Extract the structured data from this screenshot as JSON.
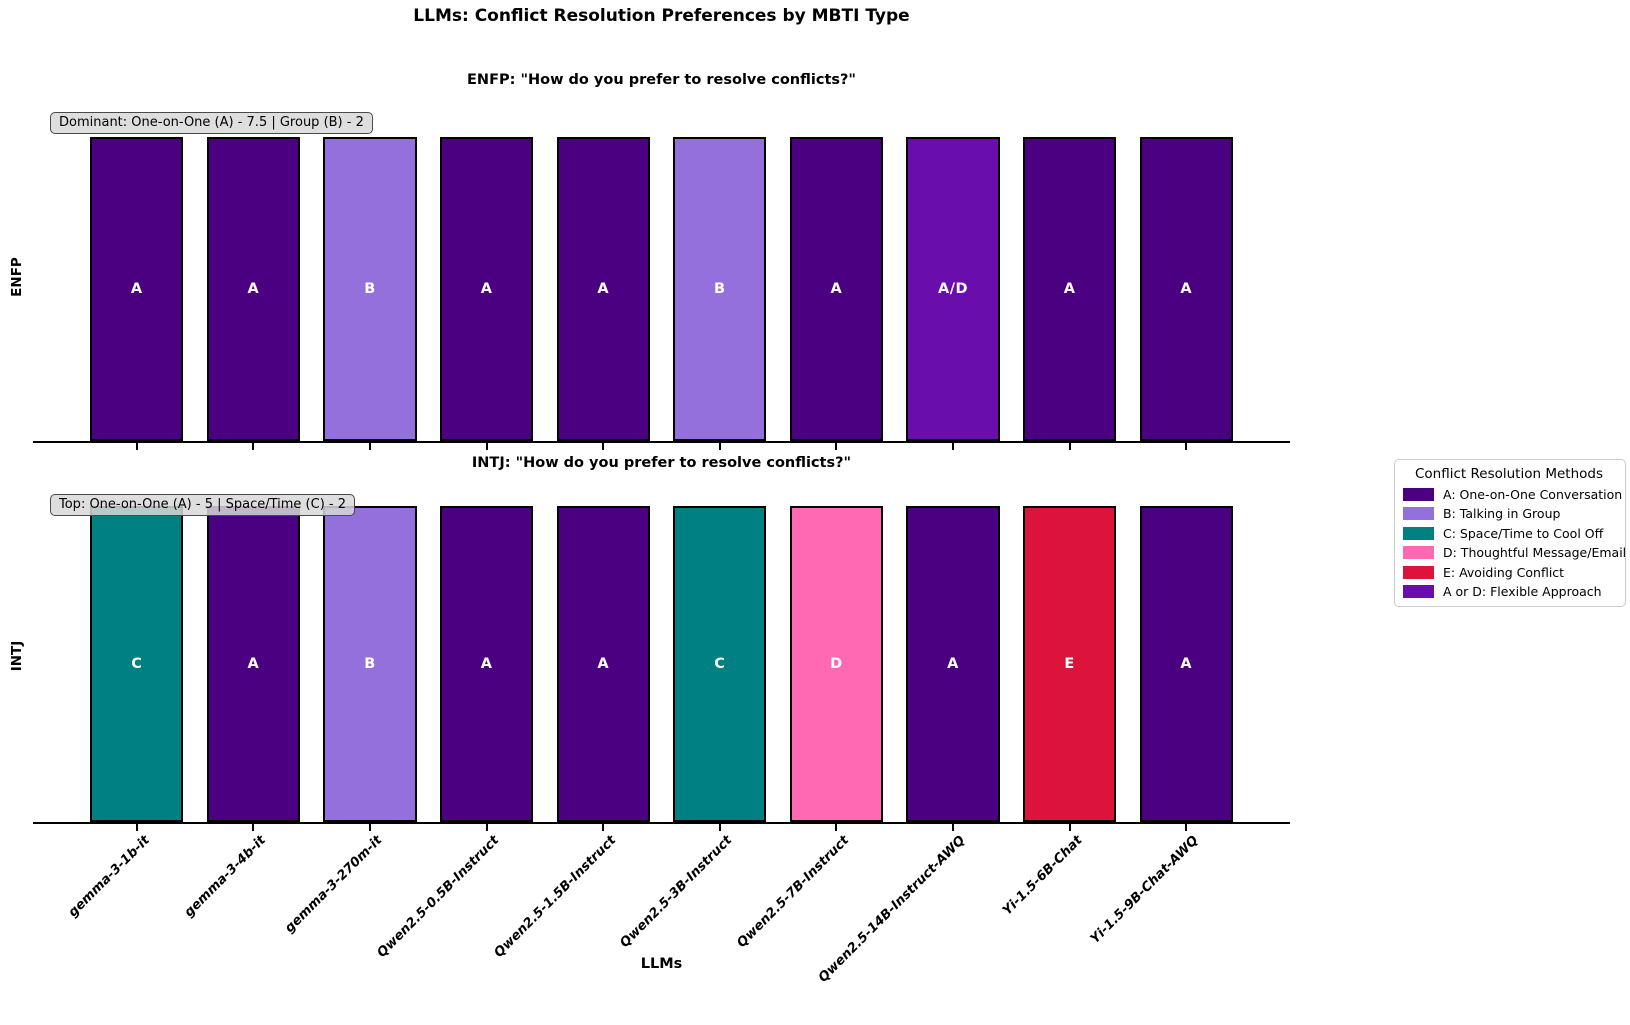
{
  "chart_data": {
    "type": "bar",
    "title": "LLMs: Conflict Resolution Preferences by MBTI Type",
    "xlabel": "LLMs",
    "categories": [
      "gemma-3-1b-it",
      "gemma-3-4b-it",
      "gemma-3-270m-it",
      "Qwen2.5-0.5B-Instruct",
      "Qwen2.5-1.5B-Instruct",
      "Qwen2.5-3B-Instruct",
      "Qwen2.5-7B-Instruct",
      "Qwen2.5-14B-Instruct-AWQ",
      "Yi-1.5-6B-Chat",
      "Yi-1.5-9B-Chat-AWQ"
    ],
    "ylim": [
      0,
      1.09
    ],
    "grid": false,
    "subplots": [
      {
        "id": "enfp",
        "title": "ENFP: \"How do you prefer to resolve conflicts?\"",
        "ylabel": "ENFP",
        "annotation": "Dominant: One-on-One (A) - 7.5 | Group (B) - 2",
        "series": [
          {
            "name": "preference",
            "values": [
              1,
              1,
              1,
              1,
              1,
              1,
              1,
              1,
              1,
              1
            ]
          }
        ],
        "bar_labels": [
          "A",
          "A",
          "B",
          "A",
          "A",
          "B",
          "A",
          "A/D",
          "A",
          "A"
        ]
      },
      {
        "id": "intj",
        "title": "INTJ: \"How do you prefer to resolve conflicts?\"",
        "ylabel": "INTJ",
        "annotation": "Top: One-on-One (A) - 5 | Space/Time (C) - 2",
        "series": [
          {
            "name": "preference",
            "values": [
              1,
              1,
              1,
              1,
              1,
              1,
              1,
              1,
              1,
              1
            ]
          }
        ],
        "bar_labels": [
          "C",
          "A",
          "B",
          "A",
          "A",
          "C",
          "D",
          "A",
          "E",
          "A"
        ]
      }
    ],
    "colors": {
      "A": "#4B0082",
      "B": "#9370DB",
      "C": "#008080",
      "D": "#FF69B4",
      "E": "#DC143C",
      "A/D": "#6A0DAD"
    },
    "legend": {
      "title": "Conflict Resolution Methods",
      "position": "outside-right",
      "entries": [
        {
          "key": "A",
          "label": "A: One-on-One Conversation",
          "color": "#4B0082"
        },
        {
          "key": "B",
          "label": "B: Talking in Group",
          "color": "#9370DB"
        },
        {
          "key": "C",
          "label": "C: Space/Time to Cool Off",
          "color": "#008080"
        },
        {
          "key": "D",
          "label": "D: Thoughtful Message/Email",
          "color": "#FF69B4"
        },
        {
          "key": "E",
          "label": "E: Avoiding Conflict",
          "color": "#DC143C"
        },
        {
          "key": "A/D",
          "label": "A or D: Flexible Approach",
          "color": "#6A0DAD"
        }
      ]
    }
  }
}
